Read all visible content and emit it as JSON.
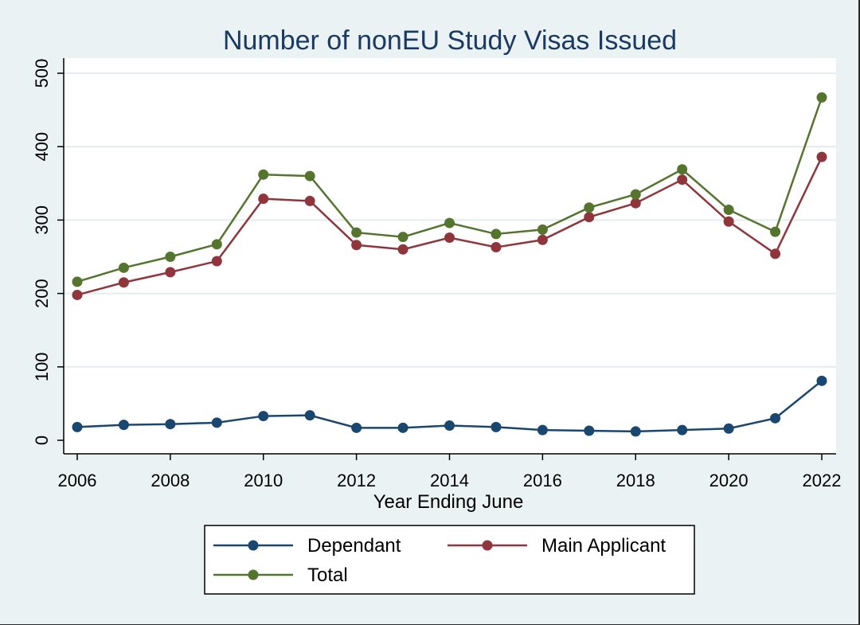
{
  "chart_data": {
    "type": "line",
    "title": "Number of nonEU Study Visas Issued",
    "xlabel": "Year Ending June",
    "ylabel": "",
    "x": [
      2006,
      2007,
      2008,
      2009,
      2010,
      2011,
      2012,
      2013,
      2014,
      2015,
      2016,
      2017,
      2018,
      2019,
      2020,
      2021,
      2022
    ],
    "xlim": [
      2006,
      2022
    ],
    "ylim": [
      0,
      500
    ],
    "x_ticks": [
      2006,
      2008,
      2010,
      2012,
      2014,
      2016,
      2018,
      2020,
      2022
    ],
    "y_ticks": [
      0,
      100,
      200,
      300,
      400,
      500
    ],
    "grid": true,
    "legend_position": "bottom",
    "series": [
      {
        "name": "Dependant",
        "color": "#1a476f",
        "values": [
          18,
          21,
          22,
          24,
          33,
          34,
          17,
          17,
          20,
          18,
          14,
          13,
          12,
          14,
          16,
          30,
          81
        ]
      },
      {
        "name": "Main Applicant",
        "color": "#90353b",
        "values": [
          198,
          215,
          229,
          244,
          329,
          326,
          266,
          260,
          276,
          263,
          273,
          304,
          323,
          355,
          298,
          254,
          386
        ]
      },
      {
        "name": "Total",
        "color": "#55752f",
        "values": [
          216,
          235,
          250,
          267,
          362,
          360,
          283,
          277,
          296,
          281,
          287,
          317,
          335,
          369,
          314,
          284,
          467
        ]
      }
    ]
  }
}
